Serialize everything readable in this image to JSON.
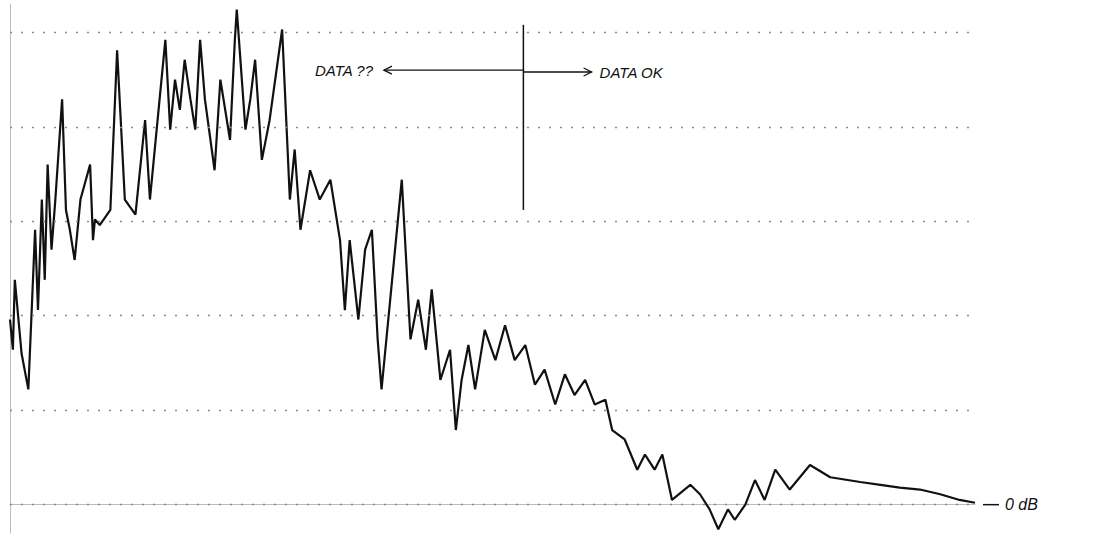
{
  "chart_data": {
    "type": "line",
    "color": "#111111",
    "grid": true,
    "tick_labels": false,
    "line_style": "solid",
    "xlim": [
      0,
      100
    ],
    "ylim": [
      -3,
      53
    ],
    "yticks": [
      0,
      10,
      20,
      30,
      40,
      50
    ],
    "x": [
      0,
      0.3,
      0.5,
      1.2,
      1.9,
      2.6,
      2.9,
      3.3,
      3.6,
      3.9,
      4.3,
      4.7,
      5.4,
      5.8,
      6.2,
      6.7,
      7.3,
      8.3,
      8.6,
      8.8,
      9.3,
      10.4,
      11.1,
      11.9,
      13.0,
      14.0,
      14.5,
      15.5,
      16.1,
      16.6,
      17.1,
      17.6,
      18.1,
      18.7,
      19.2,
      19.7,
      20.2,
      21.2,
      21.8,
      22.8,
      23.3,
      23.5,
      24.4,
      24.9,
      25.4,
      26.1,
      26.9,
      28.2,
      29.0,
      29.5,
      30.1,
      31.1,
      32.1,
      33.2,
      34.2,
      34.7,
      35.2,
      36.1,
      36.8,
      37.5,
      38.1,
      38.5,
      39.4,
      40.6,
      41.5,
      42.3,
      43.1,
      43.7,
      44.6,
      45.6,
      46.2,
      46.8,
      47.5,
      48.2,
      49.2,
      50.3,
      51.3,
      52.3,
      53.4,
      54.4,
      55.4,
      56.5,
      57.5,
      58.5,
      59.6,
      60.6,
      61.7,
      62.4,
      63.7,
      65.0,
      65.8,
      66.8,
      67.6,
      68.6,
      70.5,
      71.5,
      72.5,
      73.4,
      74.4,
      75.1,
      76.2,
      77.2,
      78.2,
      79.3,
      80.8,
      82.9,
      85.0,
      88.1,
      90.2,
      92.2,
      94.3,
      96.4,
      98.4,
      100
    ],
    "values": [
      19.6,
      16.4,
      23.8,
      16.0,
      12.2,
      29.1,
      20.6,
      32.3,
      23.8,
      36.0,
      27.0,
      32.3,
      42.9,
      31.2,
      29.1,
      25.9,
      32.3,
      36.0,
      28.0,
      30.2,
      29.6,
      31.2,
      48.1,
      32.3,
      30.7,
      40.7,
      32.3,
      42.9,
      49.2,
      39.7,
      45.0,
      41.8,
      47.1,
      42.9,
      39.7,
      49.2,
      42.9,
      35.4,
      45.0,
      38.6,
      49.2,
      52.4,
      39.7,
      42.9,
      47.1,
      36.5,
      40.7,
      50.3,
      32.3,
      37.6,
      29.1,
      35.4,
      32.3,
      34.4,
      28.0,
      20.6,
      28.0,
      19.6,
      27.0,
      29.1,
      17.5,
      12.2,
      21.7,
      34.4,
      17.5,
      21.7,
      16.4,
      22.8,
      13.2,
      16.4,
      7.9,
      13.2,
      16.9,
      12.2,
      18.5,
      15.3,
      19.0,
      15.3,
      16.9,
      12.7,
      14.3,
      10.6,
      13.8,
      11.6,
      13.2,
      10.6,
      11.1,
      7.9,
      6.9,
      3.7,
      5.3,
      3.7,
      5.3,
      0.5,
      2.1,
      1.1,
      -0.5,
      -2.6,
      -0.5,
      -1.6,
      0,
      2.6,
      0.5,
      3.7,
      1.6,
      4.2,
      2.9,
      2.4,
      2.1,
      1.8,
      1.6,
      1.1,
      0.5,
      0.2
    ],
    "divider": {
      "x": 53.2,
      "y": [
        31.2,
        50.8
      ]
    },
    "annotations": [
      {
        "text": "DATA ??",
        "x": 31.6,
        "y": 46.0
      },
      {
        "text": "DATA OK",
        "x": 61.1,
        "y": 45.8
      },
      {
        "text": "0 dB",
        "y": 0
      }
    ]
  }
}
